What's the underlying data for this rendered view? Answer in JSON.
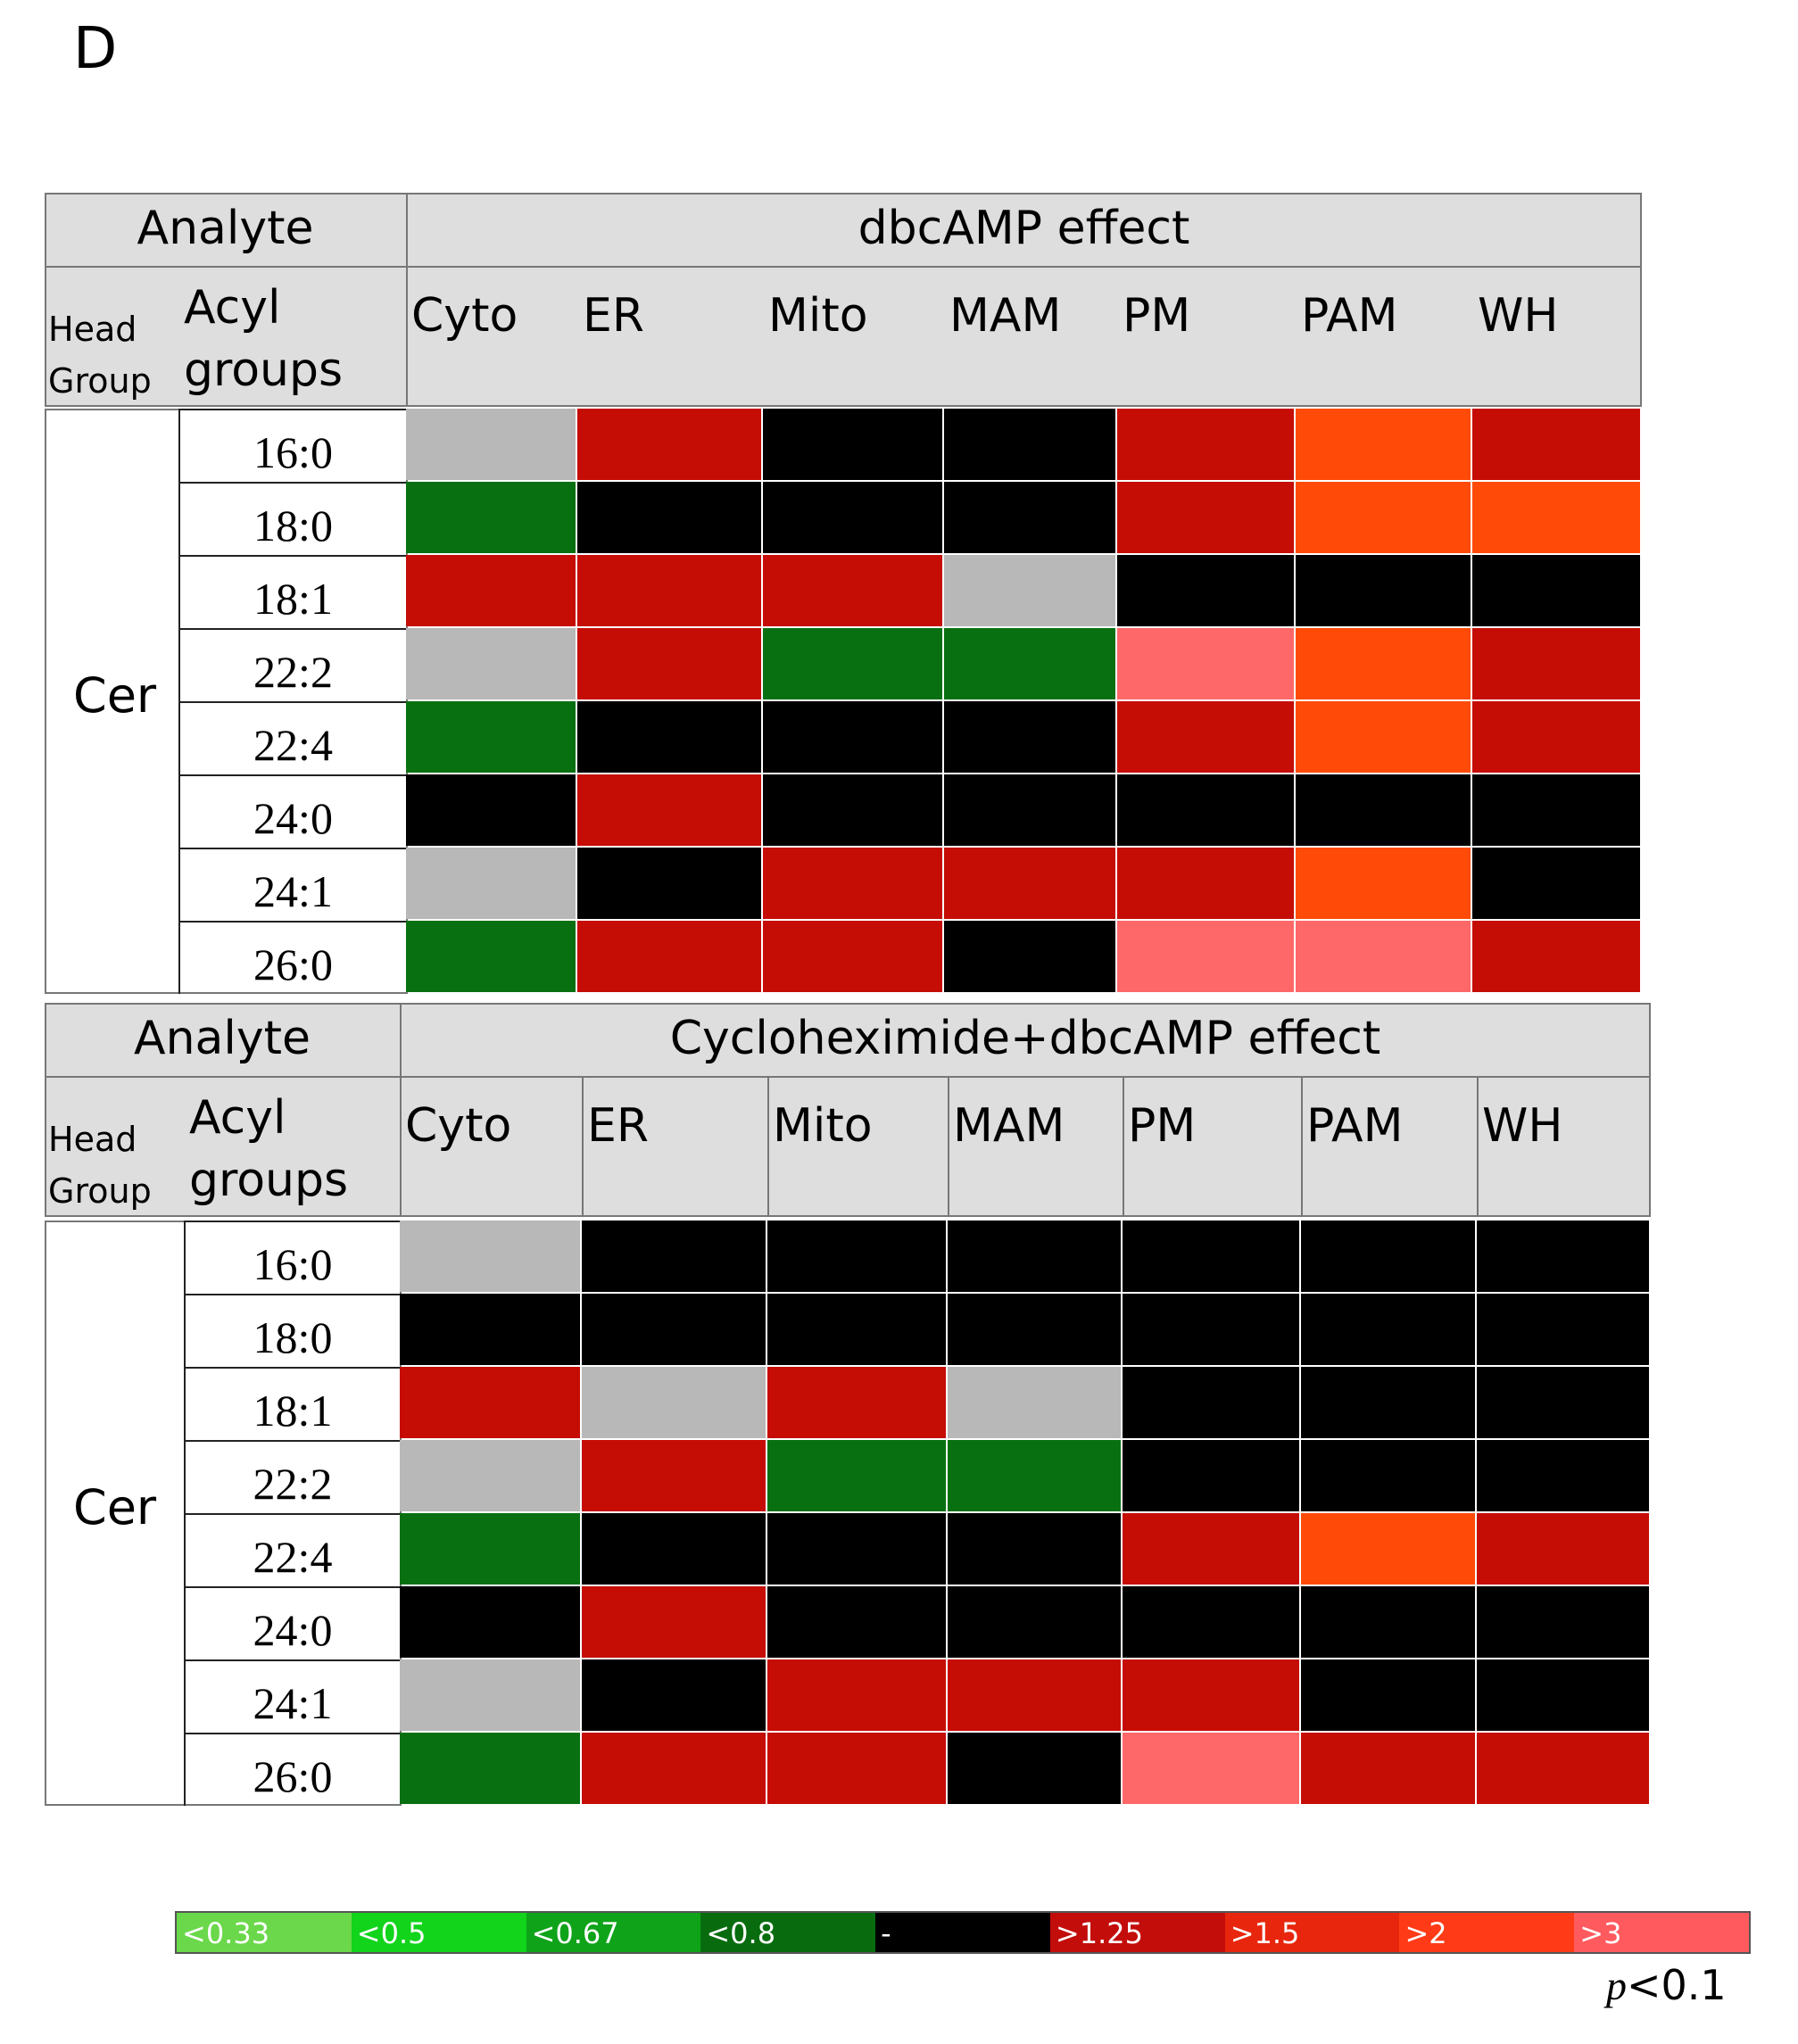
{
  "panel_label": "D",
  "chart_data": [
    {
      "type": "heatmap",
      "analyte_label": "Analyte",
      "title": "dbcAMP effect",
      "head_group_label": [
        "Head",
        "Group"
      ],
      "acyl_label": [
        "Acyl",
        "groups"
      ],
      "head_group": "Cer",
      "columns": [
        "Cyto",
        "ER",
        "Mito",
        "MAM",
        "PM",
        "PAM",
        "WH"
      ],
      "rows": [
        "16:0",
        "18:0",
        "18:1",
        "22:2",
        "22:4",
        "24:0",
        "24:1",
        "26:0"
      ],
      "cells": [
        [
          "ns",
          ">1.25",
          "-",
          "-",
          ">1.25",
          ">2",
          ">1.25"
        ],
        [
          "<0.8",
          "-",
          "-",
          "-",
          ">1.25",
          ">2",
          ">2"
        ],
        [
          ">1.25",
          ">1.25",
          ">1.25",
          "ns",
          "-",
          "-",
          "-"
        ],
        [
          "ns",
          ">1.25",
          "<0.8",
          "<0.8",
          ">3",
          ">2",
          ">1.25"
        ],
        [
          "<0.8",
          "-",
          "-",
          "-",
          ">1.25",
          ">2",
          ">1.25"
        ],
        [
          "-",
          ">1.25",
          "-",
          "-",
          "-",
          "-",
          "-"
        ],
        [
          "ns",
          "-",
          ">1.25",
          ">1.25",
          ">1.25",
          ">2",
          "-"
        ],
        [
          "<0.8",
          ">1.25",
          ">1.25",
          "-",
          ">3",
          ">3",
          ">1.25"
        ]
      ]
    },
    {
      "type": "heatmap",
      "analyte_label": "Analyte",
      "title": "Cycloheximide+dbcAMP effect",
      "head_group_label": [
        "Head",
        "Group"
      ],
      "acyl_label": [
        "Acyl",
        "groups"
      ],
      "head_group": "Cer",
      "columns": [
        "Cyto",
        "ER",
        "Mito",
        "MAM",
        "PM",
        "PAM",
        "WH"
      ],
      "rows": [
        "16:0",
        "18:0",
        "18:1",
        "22:2",
        "22:4",
        "24:0",
        "24:1",
        "26:0"
      ],
      "cells": [
        [
          "ns",
          "-",
          "-",
          "-",
          "-",
          "-",
          "-"
        ],
        [
          "-",
          "-",
          "-",
          "-",
          "-",
          "-",
          "-"
        ],
        [
          ">1.25",
          "ns",
          ">1.25",
          "ns",
          "-",
          "-",
          "-"
        ],
        [
          "ns",
          ">1.25",
          "<0.8",
          "<0.8",
          "-",
          "-",
          "-"
        ],
        [
          "<0.8",
          "-",
          "-",
          "-",
          ">1.25",
          ">2",
          ">1.25"
        ],
        [
          "-",
          ">1.25",
          "-",
          "-",
          "-",
          "-",
          "-"
        ],
        [
          "ns",
          "-",
          ">1.25",
          ">1.25",
          ">1.25",
          "-",
          "-"
        ],
        [
          "<0.8",
          ">1.25",
          ">1.25",
          "-",
          ">3",
          ">1.25",
          ">1.25"
        ]
      ]
    }
  ],
  "legend": {
    "items": [
      {
        "label": "<0.33",
        "color": "#6ad84a"
      },
      {
        "label": "<0.5",
        "color": "#11d41b"
      },
      {
        "label": "<0.67",
        "color": "#0fa31a"
      },
      {
        "label": "<0.8",
        "color": "#086c0f"
      },
      {
        "label": "-",
        "color": "#000000"
      },
      {
        "label": ">1.25",
        "color": "#c30d0b"
      },
      {
        "label": ">1.5",
        "color": "#e8260d"
      },
      {
        "label": ">2",
        "color": "#ff3a16"
      },
      {
        "label": ">3",
        "color": "#ff5a5e"
      }
    ],
    "cell_colors": {
      "ns": "#b8b8b8",
      "-": "#000000",
      "<0.8": "#097012",
      ">1.25": "#c50d05",
      ">2": "#ff4b07",
      ">3": "#ff6868"
    },
    "p_value_italic": "p",
    "p_value_rest": "<0.1"
  }
}
